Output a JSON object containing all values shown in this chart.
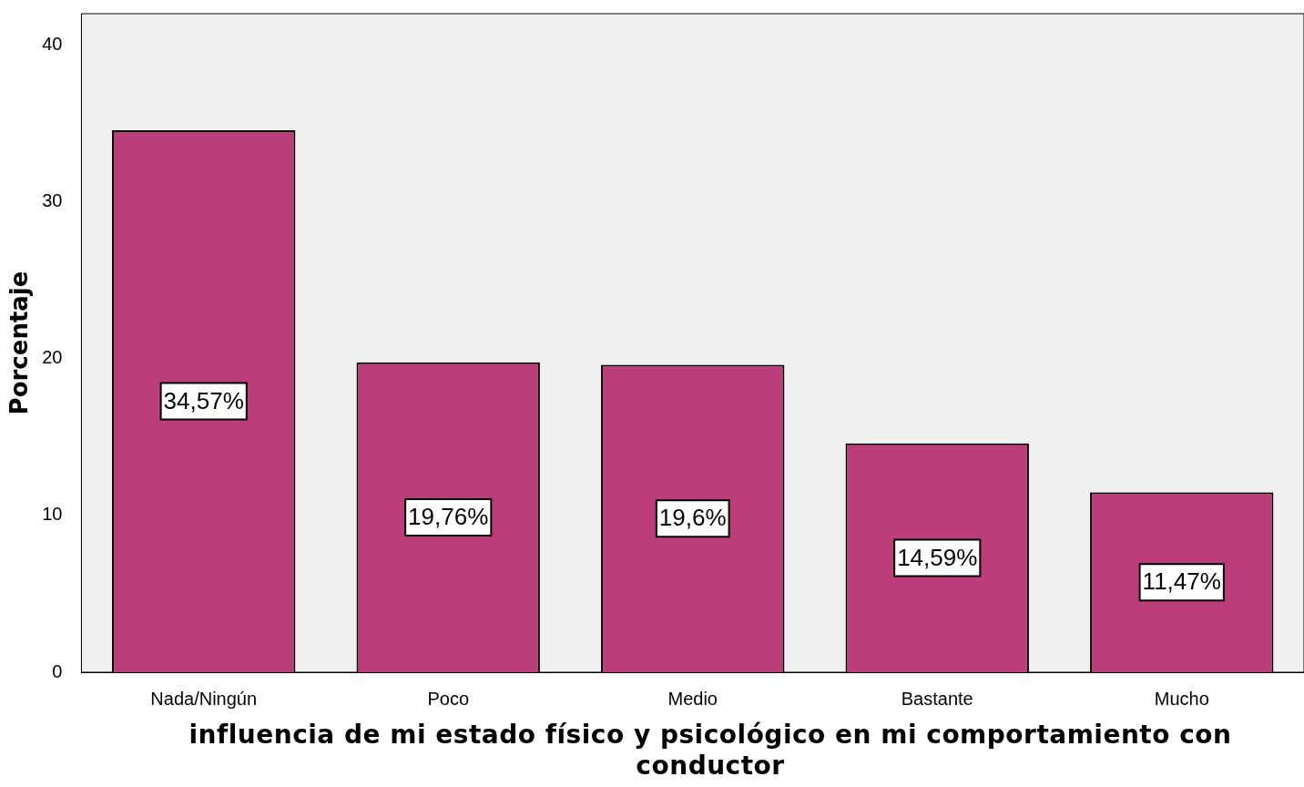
{
  "chart_data": {
    "type": "bar",
    "ylabel": "Porcentaje",
    "xlabel": "influencia de mi estado físico y psicológico en mi comportamiento con conductor",
    "categories": [
      "Nada/Ningún",
      "Poco",
      "Medio",
      "Bastante",
      "Mucho"
    ],
    "values": [
      34.57,
      19.76,
      19.6,
      14.59,
      11.47
    ],
    "value_labels": [
      "34,57%",
      "19,76%",
      "19,6%",
      "14,59%",
      "11,47%"
    ],
    "color": "#bb3d7a",
    "ylim": [
      0,
      42
    ],
    "yticks": [
      0,
      10,
      20,
      30,
      40
    ],
    "grid": false,
    "legend": false
  }
}
